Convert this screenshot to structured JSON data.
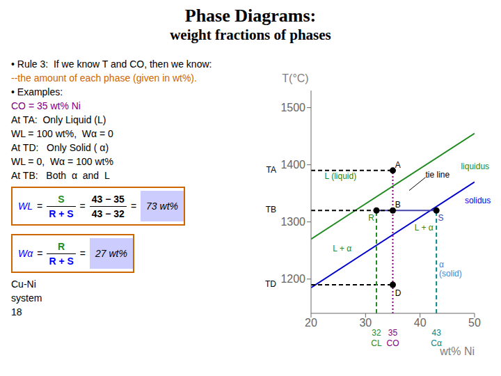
{
  "chart_data": {
    "type": "line",
    "title": "Phase Diagrams:",
    "subtitle": "weight fractions of phases",
    "xlabel": "wt% Ni",
    "ylabel": "T(°C)",
    "xlim": [
      20,
      50
    ],
    "ylim": [
      1140,
      1530
    ],
    "xticks": [
      20,
      30,
      40,
      50
    ],
    "yticks": [
      1200,
      1300,
      1400,
      1500
    ],
    "grid": false,
    "series": [
      {
        "type": "line",
        "color": "#228B22",
        "line_style": "solid",
        "x": [
          20,
          50
        ],
        "values": [
          1270,
          1455
        ]
      },
      {
        "type": "line",
        "color": "#0000CD",
        "line_style": "solid",
        "x": [
          20,
          50
        ],
        "values": [
          1185,
          1370
        ]
      },
      {
        "type": "line",
        "color": "#4444AA",
        "line_style": "solid",
        "x": [
          32,
          43
        ],
        "values": [
          1320,
          1320
        ]
      },
      {
        "type": "line",
        "color": "#000000",
        "line_style": "dashed",
        "x": [
          20,
          35
        ],
        "values": [
          1390,
          1390
        ]
      },
      {
        "type": "line",
        "color": "#000000",
        "line_style": "dashed",
        "x": [
          20,
          35
        ],
        "values": [
          1320,
          1320
        ]
      },
      {
        "type": "line",
        "color": "#000000",
        "line_style": "dashed",
        "x": [
          20,
          35
        ],
        "values": [
          1190,
          1190
        ]
      },
      {
        "type": "line",
        "color": "#800080",
        "line_style": "dotted",
        "x": [
          35,
          35
        ],
        "values": [
          1140,
          1390
        ]
      },
      {
        "type": "line",
        "color": "#228B22",
        "line_style": "dashed",
        "x": [
          32,
          32
        ],
        "values": [
          1140,
          1320
        ]
      },
      {
        "type": "line",
        "color": "#008888",
        "line_style": "dashed",
        "x": [
          43,
          43
        ],
        "values": [
          1140,
          1320
        ]
      },
      {
        "type": "scatter",
        "color": "#000000",
        "marker": "o",
        "x": [
          35,
          35,
          32,
          43,
          35
        ],
        "values": [
          1390,
          1320,
          1320,
          1320,
          1190
        ]
      }
    ],
    "annotations": [
      {
        "text": "• Rule 3:  If we know T and CO, then we know:"
      },
      {
        "text": "--the amount of each phase (given in wt%).",
        "color": "#CC6600"
      },
      {
        "text": "• Examples:"
      },
      {
        "text": "CO = 35 wt% Ni",
        "color": "#800080"
      },
      {
        "text": "At TA:  Only Liquid (L)"
      },
      {
        "text": "WL = 100 wt%,  Wα = 0"
      },
      {
        "text": "At TD:   Only Solid ( α)"
      },
      {
        "text": "WL = 0,  Wα = 100 wt%"
      },
      {
        "text": "At TB:   Both  α  and  L"
      },
      {
        "parts": [
          {
            "text": "WL",
            "color": "blue"
          },
          {
            "text": "="
          },
          {
            "num": {
              "text": "S",
              "color": "#228B22"
            },
            "den": {
              "text": "R + S",
              "color": "blue"
            }
          },
          {
            "text": "="
          },
          {
            "num": {
              "text": "43 − 35"
            },
            "den": {
              "text": "43 − 32"
            }
          },
          {
            "text": "="
          },
          {
            "text": "73 wt%"
          }
        ]
      },
      {
        "parts": [
          {
            "text": "Wα",
            "color": "blue"
          },
          {
            "text": "="
          },
          {
            "num": {
              "text": "R",
              "color": "#228B22"
            },
            "den": {
              "text": "R + S",
              "color": "blue"
            }
          },
          {
            "text": "="
          },
          {
            "text": "27 wt%"
          }
        ]
      },
      {
        "text": "Cu-Ni\nsystem"
      },
      {
        "text": "18"
      },
      {
        "text": "L (liquid)",
        "x": 22.5,
        "y": 1375,
        "color": "#228B22"
      },
      {
        "text": "L + α",
        "x": 24,
        "y": 1248,
        "color": "#228B22"
      },
      {
        "text": "L + α",
        "x": 39,
        "y": 1285,
        "color": "#228B22"
      },
      {
        "text": "α\n(solid)",
        "x": 43.5,
        "y": 1220,
        "color": "#4488CC"
      },
      {
        "text": "liquidus",
        "x": 47.5,
        "y": 1392,
        "color": "#228B22"
      },
      {
        "text": "solidus",
        "x": 48.2,
        "y": 1333,
        "color": "blue"
      },
      {
        "text": "A",
        "x": 35.4,
        "y": 1395
      },
      {
        "text": "B",
        "x": 35.4,
        "y": 1325
      },
      {
        "text": "R",
        "x": 30.5,
        "y": 1302,
        "color": "#228B22"
      },
      {
        "text": "S",
        "x": 43.3,
        "y": 1302,
        "color": "#4444AA"
      },
      {
        "text": "D",
        "x": 35.4,
        "y": 1170
      },
      {
        "text": "tie line",
        "x": 41,
        "y": 1378,
        "arrow_to": [
          38,
          1355
        ]
      },
      {
        "text": "TA",
        "y": 1390
      },
      {
        "text": "TB",
        "y": 1320
      },
      {
        "text": "TD",
        "y": 1190
      },
      {
        "text": "32",
        "x": 32,
        "color": "#228B22"
      },
      {
        "text": "35",
        "x": 35,
        "color": "#800080"
      },
      {
        "text": "43",
        "x": 43,
        "color": "#008888"
      },
      {
        "text": "CL",
        "x": 32,
        "color": "#228B22"
      },
      {
        "text": "CO",
        "x": 35,
        "color": "#800080"
      },
      {
        "text": "Cα",
        "x": 43,
        "color": "#008888"
      }
    ]
  }
}
